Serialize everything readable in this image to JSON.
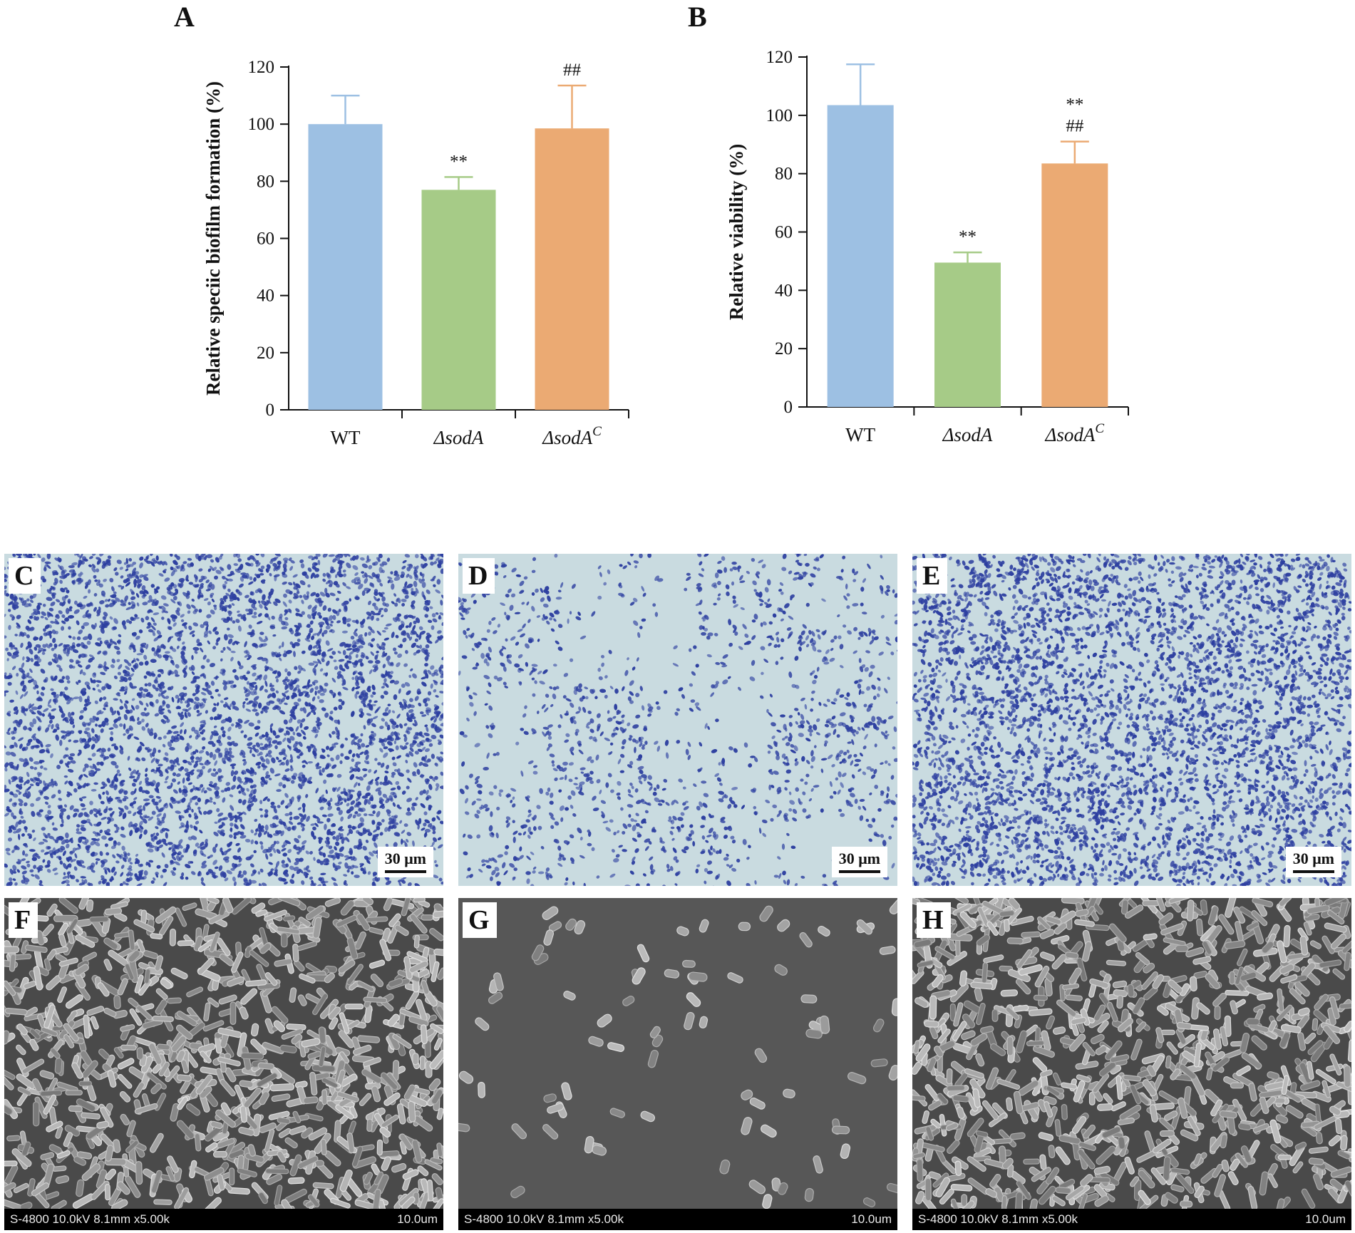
{
  "panels": {
    "A": "A",
    "B": "B",
    "C": "C",
    "D": "D",
    "E": "E",
    "F": "F",
    "G": "G",
    "H": "H"
  },
  "chart_data": [
    {
      "type": "bar",
      "panel": "A",
      "categories": [
        "WT",
        "ΔsodA",
        "ΔsodA"
      ],
      "category_superscripts": [
        "",
        "",
        "C"
      ],
      "values": [
        100,
        77,
        98.5
      ],
      "errors": [
        10,
        4.5,
        15
      ],
      "annotations": [
        [],
        [
          "**"
        ],
        [
          "##"
        ]
      ],
      "colors": [
        "#9DC0E3",
        "#A6CB87",
        "#EBAA73"
      ],
      "ylabel": "Relative speciic biofilm formation (%)",
      "xlabel": "",
      "ylim": [
        0,
        120
      ],
      "yticks": [
        "0",
        "20",
        "40",
        "60",
        "80",
        "100",
        "120"
      ],
      "grid": false
    },
    {
      "type": "bar",
      "panel": "B",
      "categories": [
        "WT",
        "ΔsodA",
        "ΔsodA"
      ],
      "category_superscripts": [
        "",
        "",
        "C"
      ],
      "values": [
        103.5,
        49.5,
        83.5
      ],
      "errors": [
        14,
        3.5,
        7.5
      ],
      "annotations": [
        [],
        [
          "**"
        ],
        [
          "**",
          "##"
        ]
      ],
      "colors": [
        "#9DC0E3",
        "#A6CB87",
        "#EBAA73"
      ],
      "ylabel": "Relative viability (%)",
      "xlabel": "",
      "ylim": [
        0,
        120
      ],
      "yticks": [
        "0",
        "20",
        "40",
        "60",
        "80",
        "100",
        "120"
      ],
      "grid": false
    }
  ],
  "micrographs": {
    "stain": [
      {
        "letter": "C",
        "scale": "30 μm",
        "density": "high"
      },
      {
        "letter": "D",
        "scale": "30 μm",
        "density": "low"
      },
      {
        "letter": "E",
        "scale": "30 μm",
        "density": "high"
      }
    ],
    "sem": [
      {
        "letter": "F",
        "footer_left": "S-4800 10.0kV 8.1mm x5.00k",
        "footer_right": "10.0um",
        "density": "high"
      },
      {
        "letter": "G",
        "footer_left": "S-4800 10.0kV 8.1mm x5.00k",
        "footer_right": "10.0um",
        "density": "low"
      },
      {
        "letter": "H",
        "footer_left": "S-4800 10.0kV 8.1mm x5.00k",
        "footer_right": "10.0um",
        "density": "high"
      }
    ],
    "colors": {
      "stain_bg": "#C9DBE0",
      "stain_cell": "#2D3FA0",
      "sem_bg": "#5A5A5A",
      "sem_cell": "#9A9A9A"
    }
  }
}
